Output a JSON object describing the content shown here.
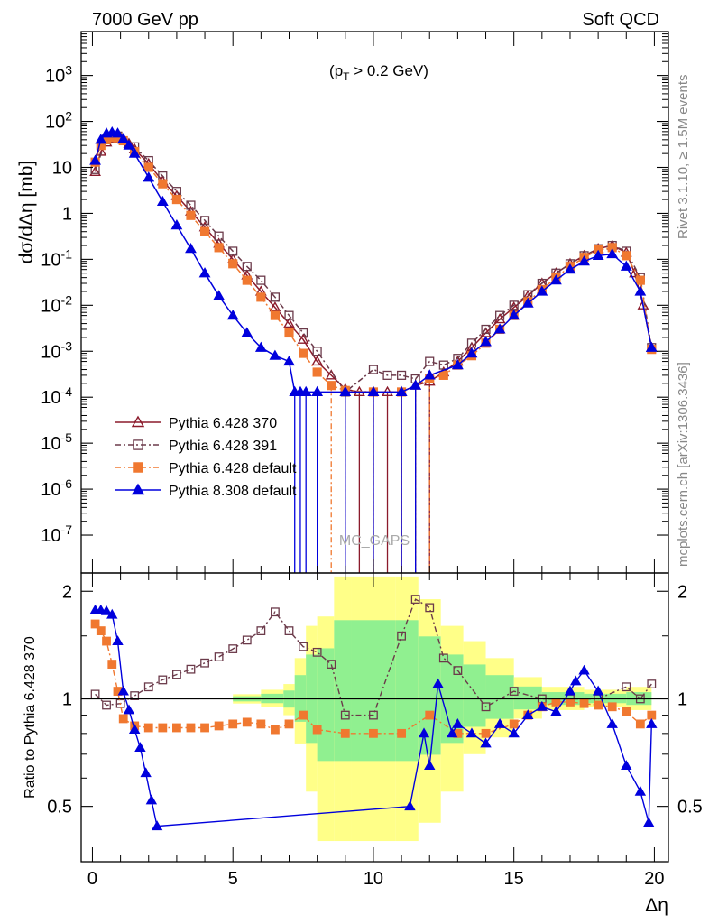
{
  "header": {
    "left": "7000 GeV pp",
    "right": "Soft QCD"
  },
  "side_text": {
    "rivet": "Rivet 3.1.10, ≥ 1.5M events",
    "mcplots": "mcplots.cern.ch [arXiv:1306.3436]"
  },
  "chart_data": [
    {
      "type": "line",
      "panel": "main",
      "annotation": "(pT > 0.2 GeV)",
      "watermark": "MC_GAPS",
      "ylabel": "dσ/dΔη [mb]",
      "yscale": "log",
      "xlim": [
        -0.4,
        20.5
      ],
      "ylim": [
        1.5e-08,
        9000
      ],
      "y_ticks": [
        "10^3",
        "10^2",
        "10",
        "1",
        "10^-1",
        "10^-2",
        "10^-3",
        "10^-4",
        "10^-5",
        "10^-6",
        "10^-7"
      ],
      "legend_position": "lower-left",
      "series": [
        {
          "name": "Pythia 6.428 370",
          "color": "#8b1a2b",
          "marker": "open-triangle",
          "x": [
            0.1,
            0.3,
            0.5,
            0.7,
            0.9,
            1.1,
            1.3,
            1.5,
            2.0,
            2.5,
            3.0,
            3.5,
            4.0,
            4.5,
            5.0,
            5.5,
            6.0,
            6.5,
            7.0,
            7.5,
            8.0,
            8.5,
            9.0,
            9.5,
            10.0,
            10.5,
            11.0,
            11.5,
            12.0,
            12.5,
            13.0,
            13.5,
            14.0,
            14.5,
            15.0,
            15.5,
            16.0,
            16.5,
            17.0,
            17.5,
            18.0,
            18.5,
            19.0,
            19.3,
            19.6,
            19.9
          ],
          "y": [
            8,
            22,
            35,
            42,
            45,
            40,
            33,
            25,
            12,
            5,
            2.4,
            1.1,
            0.5,
            0.22,
            0.1,
            0.045,
            0.02,
            0.009,
            0.004,
            0.0018,
            0.0006,
            0.0003,
            0.00015,
            0.00013,
            0.00013,
            0.00013,
            0.00013,
            0.00018,
            0.00022,
            0.00035,
            0.0006,
            0.0012,
            0.0025,
            0.005,
            0.009,
            0.016,
            0.03,
            0.05,
            0.08,
            0.12,
            0.17,
            0.2,
            0.14,
            0.05,
            0.01,
            0.0012
          ]
        },
        {
          "name": "Pythia 6.428 391",
          "color": "#6b3a4a",
          "marker": "open-square",
          "x": [
            0.1,
            0.5,
            0.9,
            1.5,
            2.0,
            2.5,
            3.0,
            3.5,
            4.0,
            4.5,
            5.0,
            5.5,
            6.0,
            6.5,
            7.0,
            7.5,
            8.0,
            9.0,
            10.0,
            10.5,
            11.0,
            11.5,
            12.0,
            12.5,
            13.0,
            13.5,
            14.0,
            14.5,
            15.0,
            15.5,
            16.0,
            16.5,
            17.0,
            17.5,
            18.0,
            18.5,
            19.0,
            19.5,
            19.9
          ],
          "y": [
            9,
            40,
            48,
            28,
            14,
            6.5,
            3,
            1.5,
            0.7,
            0.32,
            0.15,
            0.07,
            0.035,
            0.015,
            0.006,
            0.0025,
            0.001,
            0.00013,
            0.0004,
            0.0003,
            0.0003,
            0.00025,
            0.0006,
            0.0005,
            0.0007,
            0.0015,
            0.003,
            0.006,
            0.01,
            0.017,
            0.03,
            0.05,
            0.08,
            0.12,
            0.17,
            0.2,
            0.15,
            0.04,
            0.0012
          ]
        },
        {
          "name": "Pythia 6.428 default",
          "color": "#f07830",
          "marker": "filled-square",
          "x": [
            0.1,
            0.3,
            0.5,
            0.7,
            0.9,
            1.1,
            1.5,
            2.0,
            2.5,
            3.0,
            3.5,
            4.0,
            4.5,
            5.0,
            5.5,
            6.0,
            6.5,
            7.0,
            7.5,
            8.0,
            8.5,
            9.0,
            10.0,
            11.0,
            12.0,
            12.5,
            13.0,
            13.5,
            14.0,
            14.5,
            15.0,
            15.5,
            16.0,
            16.5,
            17.0,
            17.5,
            18.0,
            18.5,
            19.0,
            19.5,
            19.9
          ],
          "y": [
            13,
            30,
            40,
            45,
            44,
            38,
            22,
            10,
            4.4,
            2,
            0.9,
            0.4,
            0.18,
            0.08,
            0.035,
            0.015,
            0.006,
            0.0025,
            0.0009,
            0.00035,
            0.00018,
            0.00014,
            0.00013,
            0.00013,
            0.00025,
            0.0003,
            0.0005,
            0.0008,
            0.0015,
            0.003,
            0.006,
            0.012,
            0.022,
            0.04,
            0.07,
            0.11,
            0.16,
            0.18,
            0.12,
            0.035,
            0.0011
          ]
        },
        {
          "name": "Pythia 8.308 default",
          "color": "#0000dd",
          "marker": "filled-triangle",
          "x": [
            0.1,
            0.3,
            0.5,
            0.7,
            0.9,
            1.1,
            1.3,
            1.5,
            2.0,
            2.5,
            3.0,
            3.5,
            4.0,
            4.5,
            5.0,
            5.5,
            6.0,
            6.5,
            7.0,
            7.2,
            7.4,
            7.6,
            8.0,
            9.0,
            10.0,
            11.0,
            11.5,
            12.0,
            13.0,
            13.5,
            14.0,
            14.5,
            15.0,
            15.5,
            16.0,
            16.5,
            17.0,
            17.5,
            18.0,
            18.5,
            19.0,
            19.5,
            19.9
          ],
          "y": [
            14,
            40,
            55,
            58,
            55,
            42,
            30,
            20,
            6,
            1.8,
            0.55,
            0.17,
            0.05,
            0.016,
            0.006,
            0.0025,
            0.0012,
            0.0008,
            0.0006,
            0.00013,
            0.00013,
            0.00013,
            0.00013,
            0.00013,
            0.00013,
            0.00013,
            0.00018,
            0.0003,
            0.0005,
            0.0009,
            0.0016,
            0.003,
            0.006,
            0.011,
            0.02,
            0.035,
            0.06,
            0.09,
            0.12,
            0.13,
            0.07,
            0.02,
            0.0012
          ]
        }
      ]
    },
    {
      "type": "line",
      "panel": "ratio",
      "ylabel": "Ratio to Pythia 6.428 370",
      "xlabel": "Δη",
      "xlim": [
        -0.4,
        20.5
      ],
      "ylim": [
        0.35,
        2.25
      ],
      "y_ticks": [
        "0.5",
        "1",
        "2"
      ],
      "x_ticks": [
        "0",
        "5",
        "10",
        "15",
        "20"
      ],
      "series": [
        {
          "name": "Pythia 6.428 391",
          "x": [
            0.1,
            0.5,
            1.0,
            1.5,
            2.0,
            2.5,
            3.0,
            3.5,
            4.0,
            4.5,
            5.0,
            5.5,
            6.0,
            6.5,
            7.0,
            7.5,
            8.0,
            8.5,
            9.0,
            10.0,
            11.0,
            11.5,
            12.0,
            12.5,
            13.0,
            14.0,
            15.0,
            16.0,
            17.0,
            18.0,
            19.0,
            19.5,
            19.9
          ],
          "y": [
            1.03,
            0.96,
            0.97,
            1.02,
            1.08,
            1.13,
            1.17,
            1.21,
            1.26,
            1.31,
            1.38,
            1.46,
            1.55,
            1.75,
            1.55,
            1.4,
            1.35,
            1.25,
            0.9,
            0.9,
            1.5,
            1.9,
            1.8,
            1.3,
            1.2,
            0.95,
            1.05,
            1.0,
            1.0,
            1.0,
            1.08,
            1.0,
            1.1
          ]
        },
        {
          "name": "Pythia 6.428 default",
          "x": [
            0.1,
            0.3,
            0.5,
            0.7,
            0.9,
            1.1,
            1.5,
            2.0,
            2.5,
            3.0,
            3.5,
            4.0,
            4.5,
            5.0,
            5.5,
            6.0,
            6.5,
            7.0,
            7.5,
            8.0,
            9.0,
            10.0,
            11.0,
            12.0,
            13.0,
            14.0,
            15.0,
            15.5,
            16.0,
            16.5,
            17.0,
            17.5,
            18.0,
            18.5,
            19.0,
            19.5,
            19.9
          ],
          "y": [
            1.62,
            1.55,
            1.45,
            1.25,
            1.05,
            0.88,
            0.84,
            0.83,
            0.83,
            0.83,
            0.83,
            0.83,
            0.84,
            0.85,
            0.86,
            0.85,
            0.82,
            0.85,
            0.9,
            0.82,
            0.8,
            0.8,
            0.8,
            0.9,
            0.8,
            0.8,
            0.85,
            0.9,
            0.95,
            0.98,
            0.98,
            0.97,
            0.96,
            0.95,
            0.92,
            0.85,
            0.9
          ]
        },
        {
          "name": "Pythia 8.308 default",
          "x": [
            0.1,
            0.3,
            0.5,
            0.7,
            0.9,
            1.1,
            1.3,
            1.5,
            1.7,
            1.9,
            2.1,
            2.3,
            11.3,
            11.8,
            12.0,
            12.3,
            12.8,
            13.0,
            13.5,
            14.0,
            14.5,
            15.0,
            15.5,
            16.0,
            16.5,
            17.0,
            17.2,
            17.5,
            18.0,
            18.5,
            19.0,
            19.5,
            19.8,
            19.9
          ],
          "y": [
            1.77,
            1.77,
            1.76,
            1.72,
            1.45,
            1.05,
            0.93,
            0.82,
            0.73,
            0.62,
            0.52,
            0.44,
            0.5,
            0.8,
            0.65,
            1.1,
            0.8,
            0.85,
            0.8,
            0.75,
            0.85,
            0.8,
            0.9,
            0.95,
            0.92,
            1.05,
            1.12,
            1.2,
            1.05,
            0.85,
            0.65,
            0.55,
            0.45,
            0.85
          ]
        }
      ]
    }
  ]
}
